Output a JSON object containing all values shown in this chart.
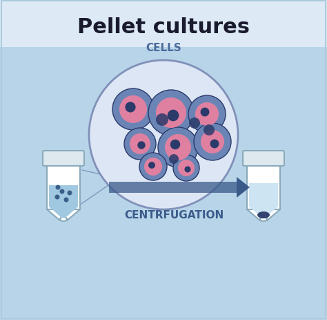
{
  "title": "Pellet cultures",
  "title_fontsize": 22,
  "cells_label": "CELLS",
  "centrifugation_label": "CENTRFUGATION",
  "bg_color": "#b8d4e8",
  "header_bg": "#ddeaf5",
  "tube_border": "#8aaabb",
  "liquid_color_left": "#a0c8e0",
  "pellet_color": "#2a3a6a",
  "cell_outer_large": "#6a85b5",
  "cell_inner_pink": "#e080a0",
  "cell_nucleus_dark": "#2a3a6a",
  "circle_bg": "#dde6f5",
  "circle_border": "#8090b8",
  "arrow_color": "#3a5a8a",
  "line_color": "#7090b8",
  "dots_color": "#2a4a7a"
}
